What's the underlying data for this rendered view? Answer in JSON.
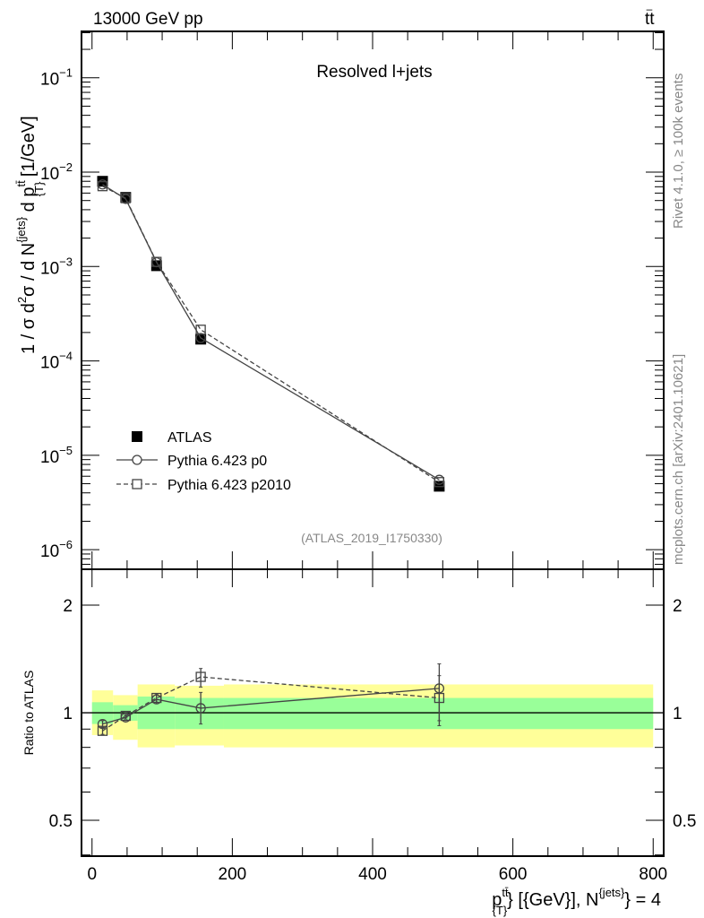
{
  "header": {
    "left": "13000 GeV pp",
    "right_main": "tt",
    "right_bar": "–"
  },
  "side_labels": {
    "rivet": "Rivet 4.1.0, ≥ 100k events",
    "mcplots": "mcplots.cern.ch [arXiv:2401.10621]"
  },
  "chart_data": [
    {
      "type": "line",
      "title": "Resolved l+jets",
      "analysis": "(ATLAS_2019_I1750330)",
      "yscale": "log",
      "ylim": [
        6.2e-07,
        0.31
      ],
      "xlim": [
        -15,
        815
      ],
      "ylabel_parts": [
        "1 / σ d",
        "2",
        "σ / d N",
        "{jets}",
        " d p",
        "tt̄",
        "{T}",
        " [1/GeV]"
      ],
      "ytick_labels": [
        {
          "base": "10",
          "exp": "−1",
          "v": 0.1
        },
        {
          "base": "10",
          "exp": "−2",
          "v": 0.01
        },
        {
          "base": "10",
          "exp": "−3",
          "v": 0.001
        },
        {
          "base": "10",
          "exp": "−4",
          "v": 0.0001
        },
        {
          "base": "10",
          "exp": "−5",
          "v": 1e-05
        },
        {
          "base": "10",
          "exp": "−6",
          "v": 1e-06
        }
      ],
      "legend_position": "bottom-left",
      "x": [
        15,
        48,
        92,
        155,
        495
      ],
      "series": [
        {
          "name": "ATLAS",
          "style": "square-filled",
          "values": [
            0.008,
            0.0054,
            0.00102,
            0.00017,
            4.7e-06
          ]
        },
        {
          "name": "Pythia 6.423 p0",
          "style": "circle-solid",
          "values": [
            0.0074,
            0.0052,
            0.00111,
            0.000175,
            5.5e-06
          ]
        },
        {
          "name": "Pythia 6.423 p2010",
          "style": "square-dashed",
          "values": [
            0.0071,
            0.0053,
            0.00112,
            0.000214,
            5.2e-06
          ]
        }
      ]
    },
    {
      "type": "line",
      "ylabel": "Ratio to ATLAS",
      "yscale": "log",
      "ylim": [
        0.397,
        2.52
      ],
      "ytick_labels": [
        {
          "label": "2",
          "v": 2
        },
        {
          "label": "1",
          "v": 1
        },
        {
          "label": "0.5",
          "v": 0.5
        }
      ],
      "xtick_labels": [
        {
          "label": "0",
          "v": 0
        },
        {
          "label": "200",
          "v": 200
        },
        {
          "label": "400",
          "v": 400
        },
        {
          "label": "600",
          "v": 600
        },
        {
          "label": "800",
          "v": 800
        }
      ],
      "xlabel_parts": [
        "p",
        "tt̄",
        "{T}",
        "} [{GeV}], N",
        "{jets}",
        "} = 4"
      ],
      "bands": [
        {
          "x0": 0,
          "x1": 30,
          "y_lo": 0.866,
          "y_hi": 1.155,
          "g_lo": 0.93,
          "g_hi": 1.07
        },
        {
          "x0": 30,
          "x1": 65,
          "y_lo": 0.84,
          "y_hi": 1.12,
          "g_lo": 0.95,
          "g_hi": 1.05
        },
        {
          "x0": 65,
          "x1": 118,
          "y_lo": 0.8,
          "y_hi": 1.2,
          "g_lo": 0.9,
          "g_hi": 1.11
        },
        {
          "x0": 118,
          "x1": 188,
          "y_lo": 0.81,
          "y_hi": 1.19,
          "g_lo": 0.9,
          "g_hi": 1.1
        },
        {
          "x0": 188,
          "x1": 800,
          "y_lo": 0.8,
          "y_hi": 1.2,
          "g_lo": 0.9,
          "g_hi": 1.1
        }
      ],
      "series": [
        {
          "name": "Pythia 6.423 p0",
          "values": [
            0.93,
            0.97,
            1.09,
            1.03,
            1.17
          ],
          "err_lo": [
            0.02,
            0.01,
            0.03,
            0.1,
            0.22
          ],
          "err_hi": [
            0.02,
            0.01,
            0.03,
            0.11,
            0.2
          ]
        },
        {
          "name": "Pythia 6.423 p2010",
          "values": [
            0.89,
            0.98,
            1.1,
            1.26,
            1.1
          ],
          "err_lo": [
            0.02,
            0.01,
            0.03,
            0.08,
            0.18
          ],
          "err_hi": [
            0.02,
            0.01,
            0.03,
            0.07,
            0.17
          ]
        }
      ]
    }
  ]
}
